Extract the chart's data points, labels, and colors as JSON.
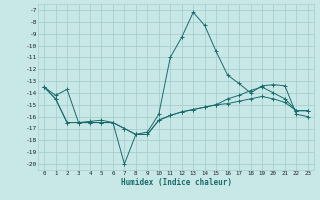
{
  "xlabel": "Humidex (Indice chaleur)",
  "background_color": "#c8e8e8",
  "grid_color": "#a8cece",
  "line_color": "#1a6b6b",
  "xlim": [
    -0.5,
    23.5
  ],
  "ylim": [
    -20.5,
    -6.5
  ],
  "yticks": [
    -7,
    -8,
    -9,
    -10,
    -11,
    -12,
    -13,
    -14,
    -15,
    -16,
    -17,
    -18,
    -19,
    -20
  ],
  "xticks": [
    0,
    1,
    2,
    3,
    4,
    5,
    6,
    7,
    8,
    9,
    10,
    11,
    12,
    13,
    14,
    15,
    16,
    17,
    18,
    19,
    20,
    21,
    22,
    23
  ],
  "hours": [
    0,
    1,
    2,
    3,
    4,
    5,
    6,
    7,
    8,
    9,
    10,
    11,
    12,
    13,
    14,
    15,
    16,
    17,
    18,
    19,
    20,
    21,
    22,
    23
  ],
  "line1": [
    -13.5,
    -14.2,
    -13.7,
    -16.5,
    -16.4,
    -16.3,
    -16.5,
    -20.0,
    -17.5,
    -17.3,
    -15.8,
    -11.0,
    -9.3,
    -7.2,
    -8.3,
    -10.5,
    -12.5,
    -13.2,
    -14.0,
    -13.4,
    -13.3,
    -13.4,
    -15.8,
    -16.0
  ],
  "line2": [
    -13.5,
    -14.5,
    -16.5,
    -16.5,
    -16.5,
    -16.5,
    -16.5,
    -17.0,
    -17.5,
    -17.5,
    -16.3,
    -15.9,
    -15.6,
    -15.4,
    -15.2,
    -15.0,
    -14.5,
    -14.2,
    -13.8,
    -13.5,
    -14.0,
    -14.5,
    -15.5,
    -15.5
  ],
  "line3": [
    -13.5,
    -14.5,
    -16.5,
    -16.5,
    -16.5,
    -16.5,
    -16.5,
    -17.0,
    -17.5,
    -17.5,
    -16.3,
    -15.9,
    -15.6,
    -15.4,
    -15.2,
    -15.0,
    -14.9,
    -14.7,
    -14.5,
    -14.3,
    -14.5,
    -14.8,
    -15.5,
    -15.5
  ]
}
